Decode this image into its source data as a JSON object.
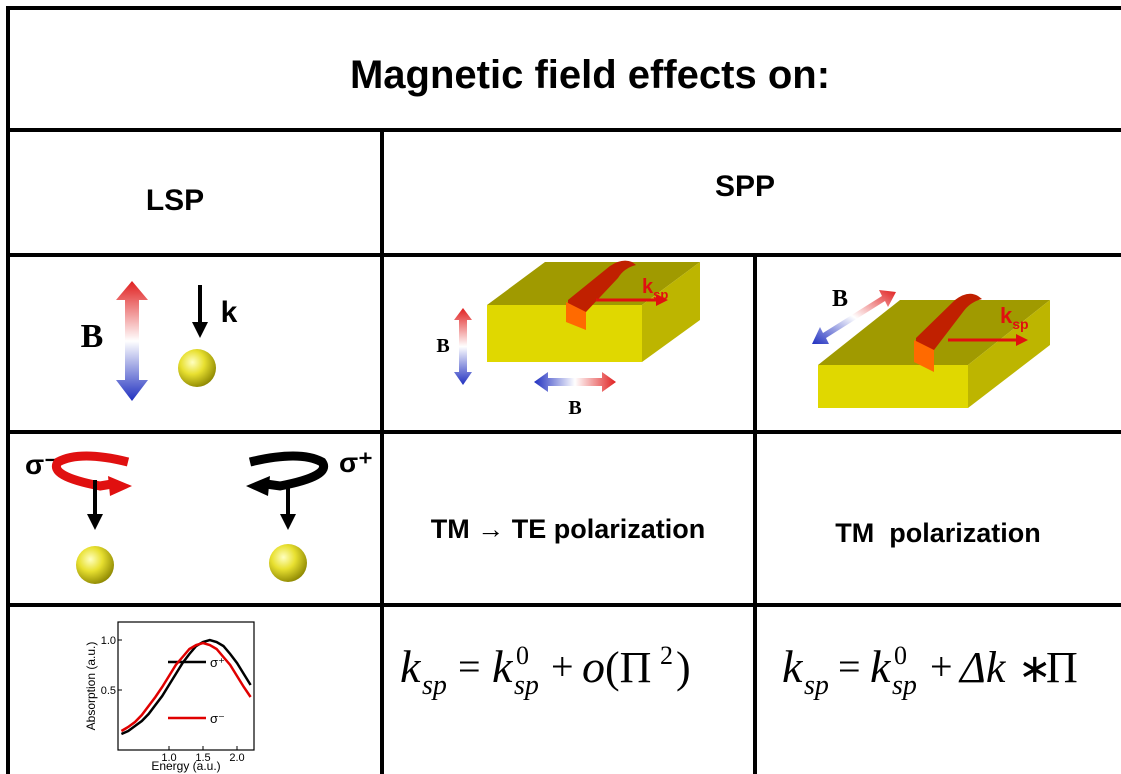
{
  "title": "Magnetic field effects on:",
  "headers": {
    "lsp": "LSP",
    "spp": "SPP"
  },
  "illustrations": {
    "lsp": {
      "b": "B",
      "k": "k"
    },
    "spp_1": {
      "b_vertical": "B",
      "b_horizontal": "B",
      "k": "k",
      "k_sub": "sp"
    },
    "spp_2": {
      "b": "B",
      "k": "k",
      "k_sub": "sp"
    }
  },
  "polarization": {
    "lsp": {
      "left": "σ⁻",
      "right": "σ⁺"
    },
    "spp_1": "TM → TE polarization",
    "spp_2": "TM  polarization"
  },
  "formulas": [
    [
      "k",
      "sp",
      "=",
      "k",
      "0",
      "sp",
      "+",
      "o",
      "(Π",
      "2",
      ")"
    ],
    [
      "k",
      "sp",
      "=",
      "k",
      "0",
      "sp",
      "+",
      "Δk",
      "∗",
      "Π"
    ]
  ],
  "inset_chart": {
    "type": "line",
    "xlabel": "Energy (a.u.)",
    "ylabel": "Absorption (a.u.)",
    "xlim": [
      0.25,
      2.25
    ],
    "ylim": [
      -0.1,
      1.18
    ],
    "xticks": [
      {
        "value": 1,
        "label": "1.0"
      },
      1.5,
      {
        "value": 2,
        "label": "2.0"
      }
    ],
    "yticks": [
      0.5,
      {
        "value": 1,
        "label": "1.0"
      }
    ],
    "x": [
      0.3,
      0.4,
      0.5,
      0.6,
      0.7,
      0.8,
      0.9,
      1.0,
      1.1,
      1.2,
      1.3,
      1.4,
      1.5,
      1.6,
      1.7,
      1.8,
      1.9,
      2.0,
      2.1,
      2.2
    ],
    "series": [
      {
        "name": "σ⁺",
        "color": "#000000",
        "values": [
          0.06,
          0.09,
          0.14,
          0.19,
          0.26,
          0.35,
          0.44,
          0.55,
          0.66,
          0.77,
          0.86,
          0.94,
          0.98,
          1.0,
          0.98,
          0.94,
          0.86,
          0.77,
          0.66,
          0.55
        ]
      },
      {
        "name": "σ⁻",
        "color": "#e00000",
        "values": [
          0.09,
          0.13,
          0.18,
          0.25,
          0.34,
          0.43,
          0.53,
          0.64,
          0.75,
          0.83,
          0.91,
          0.95,
          0.97,
          0.95,
          0.91,
          0.83,
          0.75,
          0.64,
          0.53,
          0.43
        ]
      }
    ]
  }
}
